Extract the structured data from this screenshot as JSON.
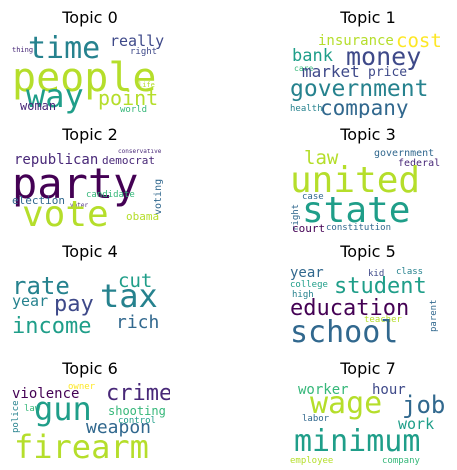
{
  "topics": [
    {
      "title": "Topic 0",
      "words": [
        "people",
        "time",
        "way",
        "point",
        "really",
        "right",
        "thing",
        "woman",
        "world",
        "life"
      ]
    },
    {
      "title": "Topic 1",
      "words": [
        "government",
        "money",
        "company",
        "bank",
        "market",
        "insurance",
        "cost",
        "price",
        "health",
        "care"
      ]
    },
    {
      "title": "Topic 2",
      "words": [
        "party",
        "vote",
        "republican",
        "democrat",
        "election",
        "candidate",
        "voting",
        "obama",
        "conservative",
        "voter"
      ]
    },
    {
      "title": "Topic 3",
      "words": [
        "united",
        "state",
        "law",
        "government",
        "federal",
        "case",
        "right",
        "court",
        "constitution"
      ]
    },
    {
      "title": "Topic 4",
      "words": [
        "tax",
        "income",
        "pay",
        "rate",
        "cut",
        "rich",
        "year"
      ]
    },
    {
      "title": "Topic 5",
      "words": [
        "school",
        "education",
        "student",
        "year",
        "kid",
        "class",
        "college",
        "high",
        "teacher",
        "parent"
      ]
    },
    {
      "title": "Topic 6",
      "words": [
        "firearm",
        "gun",
        "crime",
        "weapon",
        "violence",
        "shooting",
        "control",
        "owner",
        "police",
        "law"
      ]
    },
    {
      "title": "Topic 7",
      "words": [
        "minimum",
        "wage",
        "job",
        "worker",
        "hour",
        "work",
        "labor",
        "company",
        "employee"
      ]
    }
  ],
  "colors": {
    "dark_purple": "#440154",
    "purple": "#482878",
    "indigo": "#3e4989",
    "blue": "#31688e",
    "teal_blue": "#26828e",
    "teal": "#1f9e89",
    "green": "#35b779",
    "light_green": "#6ece58",
    "yellow_green": "#b5de2b",
    "yellow": "#fde725"
  }
}
